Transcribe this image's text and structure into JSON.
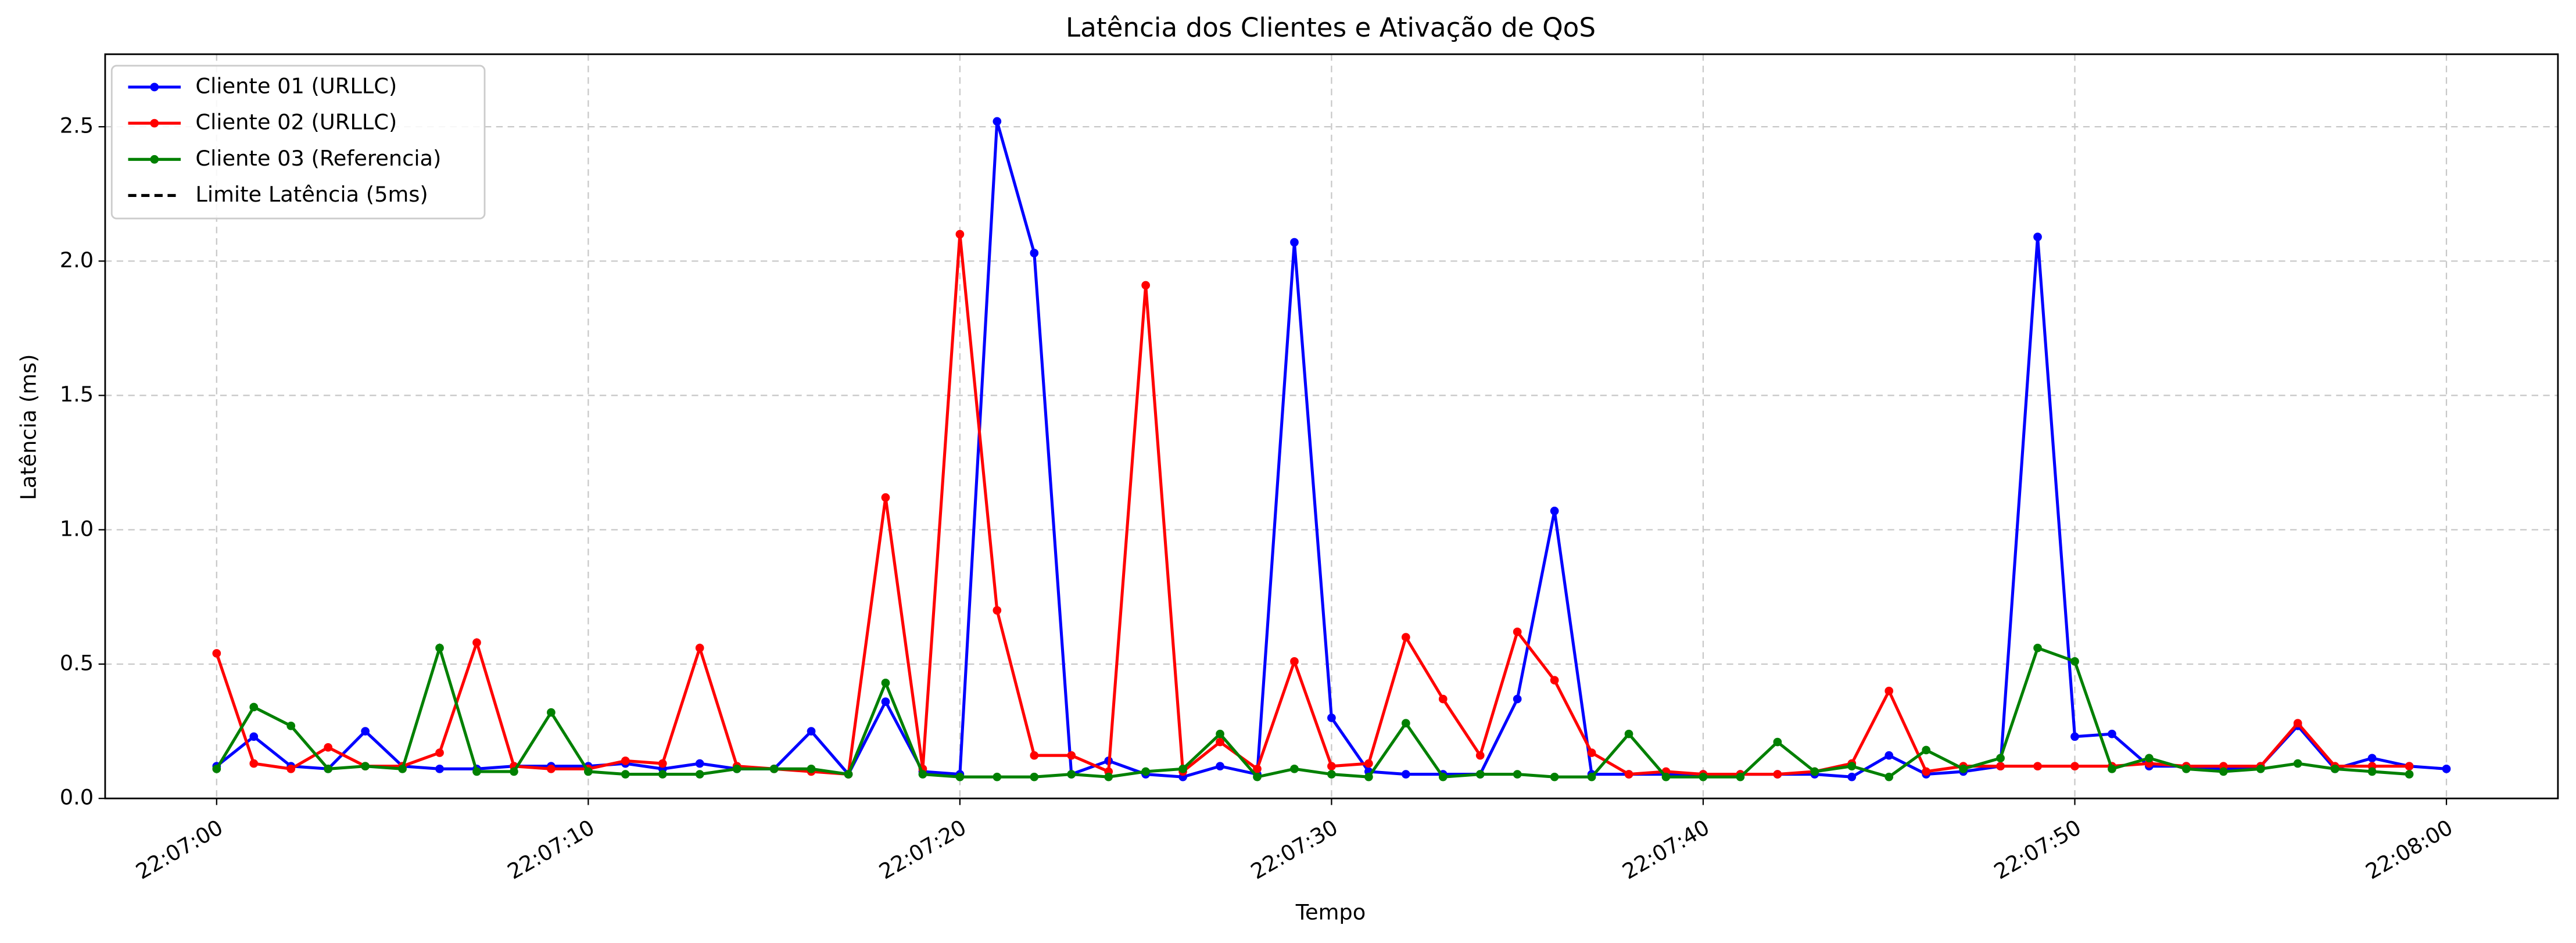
{
  "chart_data": {
    "type": "line",
    "title": "Latência dos Clientes e Ativação de QoS",
    "x_label": "Tempo",
    "y_label": "Latência (ms)",
    "x": [
      "22:07:00",
      "22:07:01",
      "22:07:02",
      "22:07:03",
      "22:07:04",
      "22:07:05",
      "22:07:06",
      "22:07:07",
      "22:07:08",
      "22:07:09",
      "22:07:10",
      "22:07:11",
      "22:07:12",
      "22:07:13",
      "22:07:14",
      "22:07:15",
      "22:07:16",
      "22:07:17",
      "22:07:18",
      "22:07:19",
      "22:07:20",
      "22:07:21",
      "22:07:22",
      "22:07:23",
      "22:07:24",
      "22:07:25",
      "22:07:26",
      "22:07:27",
      "22:07:28",
      "22:07:29",
      "22:07:30",
      "22:07:31",
      "22:07:32",
      "22:07:33",
      "22:07:34",
      "22:07:35",
      "22:07:36",
      "22:07:37",
      "22:07:38",
      "22:07:39",
      "22:07:40",
      "22:07:41",
      "22:07:42",
      "22:07:43",
      "22:07:44",
      "22:07:45",
      "22:07:46",
      "22:07:47",
      "22:07:48",
      "22:07:49",
      "22:07:50",
      "22:07:51",
      "22:07:52",
      "22:07:53",
      "22:07:54",
      "22:07:55",
      "22:07:56",
      "22:07:57",
      "22:07:58",
      "22:07:59",
      "22:08:00"
    ],
    "series": [
      {
        "name": "Cliente 01 (URLLC)",
        "color": "#0000ff",
        "values": [
          0.12,
          0.23,
          0.12,
          0.11,
          0.25,
          0.12,
          0.11,
          0.11,
          0.12,
          0.12,
          0.12,
          0.13,
          0.11,
          0.13,
          0.11,
          0.11,
          0.25,
          0.09,
          0.36,
          0.1,
          0.09,
          2.52,
          2.03,
          0.09,
          0.14,
          0.09,
          0.08,
          0.12,
          0.09,
          2.07,
          0.3,
          0.1,
          0.09,
          0.09,
          0.09,
          0.37,
          1.07,
          0.09,
          0.09,
          0.09,
          0.09,
          0.09,
          0.09,
          0.09,
          0.08,
          0.16,
          0.09,
          0.1,
          0.12,
          2.09,
          0.23,
          0.24,
          0.12,
          0.12,
          0.11,
          0.12,
          0.27,
          0.11,
          0.15,
          0.12,
          0.11
        ]
      },
      {
        "name": "Cliente 02 (URLLC)",
        "color": "#ff0000",
        "values": [
          0.54,
          0.13,
          0.11,
          0.19,
          0.12,
          0.12,
          0.17,
          0.58,
          0.12,
          0.11,
          0.11,
          0.14,
          0.13,
          0.56,
          0.12,
          0.11,
          0.1,
          0.09,
          1.12,
          0.11,
          2.1,
          0.7,
          0.16,
          0.16,
          0.1,
          1.91,
          0.1,
          0.21,
          0.11,
          0.51,
          0.12,
          0.13,
          0.6,
          0.37,
          0.16,
          0.62,
          0.44,
          0.17,
          0.09,
          0.1,
          0.09,
          0.09,
          0.09,
          0.1,
          0.13,
          0.4,
          0.1,
          0.12,
          0.12,
          0.12,
          0.12,
          0.12,
          0.13,
          0.12,
          0.12,
          0.12,
          0.28,
          0.12,
          0.12,
          0.12,
          null
        ]
      },
      {
        "name": "Cliente 03 (Referencia)",
        "color": "#008000",
        "values": [
          0.11,
          0.34,
          0.27,
          0.11,
          0.12,
          0.11,
          0.56,
          0.1,
          0.1,
          0.32,
          0.1,
          0.09,
          0.09,
          0.09,
          0.11,
          0.11,
          0.11,
          0.09,
          0.43,
          0.09,
          0.08,
          0.08,
          0.08,
          0.09,
          0.08,
          0.1,
          0.11,
          0.24,
          0.08,
          0.11,
          0.09,
          0.08,
          0.28,
          0.08,
          0.09,
          0.09,
          0.08,
          0.08,
          0.24,
          0.08,
          0.08,
          0.08,
          0.21,
          0.1,
          0.12,
          0.08,
          0.18,
          0.11,
          0.15,
          0.56,
          0.51,
          0.11,
          0.15,
          0.11,
          0.1,
          0.11,
          0.13,
          0.11,
          0.1,
          0.09,
          null
        ]
      }
    ],
    "reference_lines": [
      {
        "name": "Limite Latência (5ms)",
        "value": 5,
        "color": "#000000",
        "style": "dashed"
      }
    ],
    "xlim": [
      "22:06:57",
      "22:08:03"
    ],
    "xticks": [
      "22:07:00",
      "22:07:10",
      "22:07:20",
      "22:07:30",
      "22:07:40",
      "22:07:50",
      "22:08:00"
    ],
    "ylim": [
      0,
      2.77
    ],
    "yticks": [
      {
        "value": 0,
        "label": "0.0"
      },
      0.5,
      {
        "value": 1,
        "label": "1.0"
      },
      1.5,
      {
        "value": 2,
        "label": "2.0"
      },
      2.5
    ],
    "grid": true,
    "legend": "upper left"
  }
}
